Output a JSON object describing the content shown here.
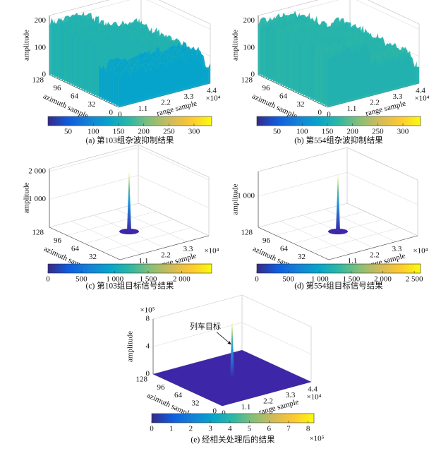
{
  "chart_data": [
    {
      "type": "surface",
      "zlabel": "amplitude",
      "zlim": [
        0,
        220
      ],
      "zticks": [
        0,
        100,
        200
      ],
      "ylabel": "azimuth sample",
      "ylim": [
        0,
        128
      ],
      "yticks": [
        0,
        32,
        64,
        96,
        128
      ],
      "xlabel": "range sample",
      "xlim": [
        0,
        4.4
      ],
      "xticks": [
        0,
        1.1,
        2.2,
        3.3,
        4.4
      ],
      "x_exponent": "×10⁴",
      "clim": [
        10,
        335
      ],
      "cticks": [
        50,
        100,
        150,
        200,
        250,
        300
      ],
      "caption": "(a) 第103组杂波抑制结果"
    },
    {
      "type": "surface",
      "zlabel": "amplitude",
      "zlim": [
        0,
        220
      ],
      "zticks": [
        0,
        100,
        200
      ],
      "ylabel": "azimuth sample",
      "ylim": [
        0,
        128
      ],
      "yticks": [
        0,
        32,
        64,
        96,
        128
      ],
      "xlabel": "range sample",
      "xlim": [
        0,
        4.4
      ],
      "xticks": [
        0,
        1.1,
        2.2,
        3.3,
        4.4
      ],
      "x_exponent": "×10⁴",
      "clim": [
        10,
        335
      ],
      "cticks": [
        50,
        100,
        150,
        200,
        250,
        300
      ],
      "caption": "(b) 第554组杂波抑制结果"
    },
    {
      "type": "surface",
      "zlabel": "amplitude",
      "zlim": [
        0,
        2100
      ],
      "zticks": [
        {
          "value": 1000,
          "label": "1 000"
        },
        {
          "value": 2000,
          "label": "2 000"
        }
      ],
      "ylabel": "azimuth sample",
      "ylim": [
        0,
        128
      ],
      "yticks": [
        32,
        64,
        96,
        128
      ],
      "xlabel": "range sample",
      "xlim": [
        0,
        4.4
      ],
      "xticks": [
        1.1,
        2.2,
        3.3
      ],
      "x_exponent": "×10⁴",
      "clim": [
        0,
        2450
      ],
      "cticks": [
        0,
        500,
        {
          "value": 1000,
          "label": "1 000"
        },
        {
          "value": 1500,
          "label": "1 500"
        },
        {
          "value": 2000,
          "label": "2 000"
        }
      ],
      "caption": "(c) 第103组目标信号结果"
    },
    {
      "type": "surface",
      "zlabel": "amplitude",
      "zlim": [
        0,
        1800
      ],
      "zticks": [
        {
          "value": 1000,
          "label": "1 000"
        }
      ],
      "ylabel": "azimuth sample",
      "ylim": [
        0,
        128
      ],
      "yticks": [
        32,
        64,
        96,
        128
      ],
      "xlabel": "range sample",
      "xlim": [
        0,
        4.4
      ],
      "xticks": [
        1.1,
        2.2,
        3.3
      ],
      "x_exponent": "×10⁴",
      "clim": [
        0,
        2600
      ],
      "cticks": [
        0,
        500,
        {
          "value": 1000,
          "label": "1 000"
        },
        {
          "value": 1500,
          "label": "1 500"
        },
        {
          "value": 2000,
          "label": "2 000"
        },
        {
          "value": 2500,
          "label": "2 500"
        }
      ],
      "caption": "(d) 第554组目标信号结果"
    },
    {
      "type": "surface",
      "zlabel": "amplitude",
      "zlim": [
        0,
        8
      ],
      "zticks": [
        0,
        4,
        8
      ],
      "z_exponent": "×10⁵",
      "ylabel": "azimuth sample",
      "ylim": [
        0,
        128
      ],
      "yticks": [
        0,
        32,
        64,
        96,
        128
      ],
      "xlabel": "range sample",
      "xlim": [
        0,
        4.4
      ],
      "xticks": [
        0,
        1.1,
        2.2,
        3.3,
        4.4
      ],
      "x_exponent": "×10⁴",
      "clim": [
        0,
        8.3
      ],
      "cticks": [
        0,
        1,
        2,
        3,
        4,
        5,
        6,
        7,
        8
      ],
      "c_exponent": "×10⁵",
      "annotation": "列车目标",
      "caption": "(e) 经相关处理后的结果"
    }
  ]
}
